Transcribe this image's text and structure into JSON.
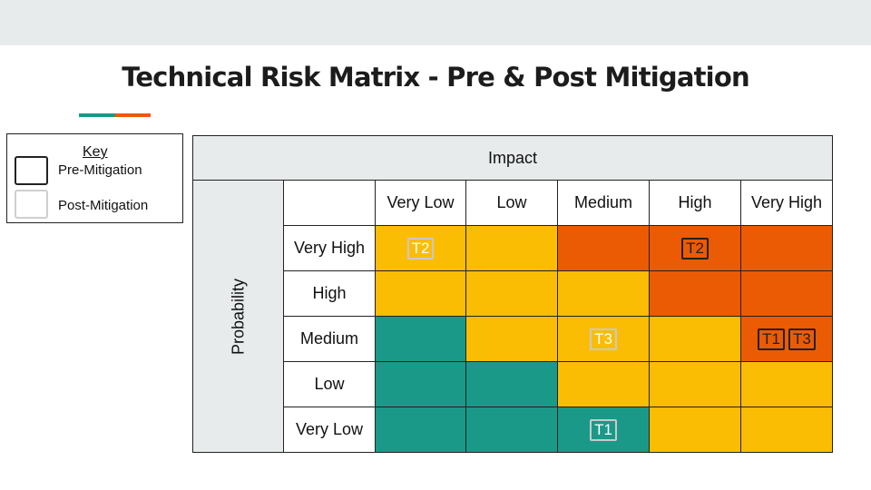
{
  "title": "Technical Risk Matrix - Pre & Post Mitigation",
  "colors": {
    "teal": "#1a9988",
    "yellow": "#fbbd04",
    "orange": "#ea5b04",
    "header_gray": "#e8ebeb",
    "accent_teal": "#1a9988",
    "accent_orange": "#ea5b04"
  },
  "key": {
    "title": "Key",
    "pre_label": "Pre-Mitigation",
    "post_label": "Post-Mitigation"
  },
  "matrix": {
    "impact_label": "Impact",
    "probability_label": "Probability",
    "columns": [
      "Very Low",
      "Low",
      "Medium",
      "High",
      "Very High"
    ],
    "rows": [
      {
        "label": "Very High",
        "cells": [
          {
            "color": "yellow",
            "badges": [
              {
                "text": "T2",
                "type": "post"
              }
            ]
          },
          {
            "color": "yellow",
            "badges": []
          },
          {
            "color": "orange",
            "badges": []
          },
          {
            "color": "orange",
            "badges": [
              {
                "text": "T2",
                "type": "pre"
              }
            ]
          },
          {
            "color": "orange",
            "badges": []
          }
        ]
      },
      {
        "label": "High",
        "cells": [
          {
            "color": "yellow",
            "badges": []
          },
          {
            "color": "yellow",
            "badges": []
          },
          {
            "color": "yellow",
            "badges": []
          },
          {
            "color": "orange",
            "badges": []
          },
          {
            "color": "orange",
            "badges": []
          }
        ]
      },
      {
        "label": "Medium",
        "cells": [
          {
            "color": "teal",
            "badges": []
          },
          {
            "color": "yellow",
            "badges": []
          },
          {
            "color": "yellow",
            "badges": [
              {
                "text": "T3",
                "type": "post"
              }
            ]
          },
          {
            "color": "yellow",
            "badges": []
          },
          {
            "color": "orange",
            "badges": [
              {
                "text": "T1",
                "type": "pre"
              },
              {
                "text": "T3",
                "type": "pre"
              }
            ]
          }
        ]
      },
      {
        "label": "Low",
        "cells": [
          {
            "color": "teal",
            "badges": []
          },
          {
            "color": "teal",
            "badges": []
          },
          {
            "color": "yellow",
            "badges": []
          },
          {
            "color": "yellow",
            "badges": []
          },
          {
            "color": "yellow",
            "badges": []
          }
        ]
      },
      {
        "label": "Very Low",
        "cells": [
          {
            "color": "teal",
            "badges": []
          },
          {
            "color": "teal",
            "badges": []
          },
          {
            "color": "teal",
            "badges": [
              {
                "text": "T1",
                "type": "post"
              }
            ]
          },
          {
            "color": "yellow",
            "badges": []
          },
          {
            "color": "yellow",
            "badges": []
          }
        ]
      }
    ]
  }
}
